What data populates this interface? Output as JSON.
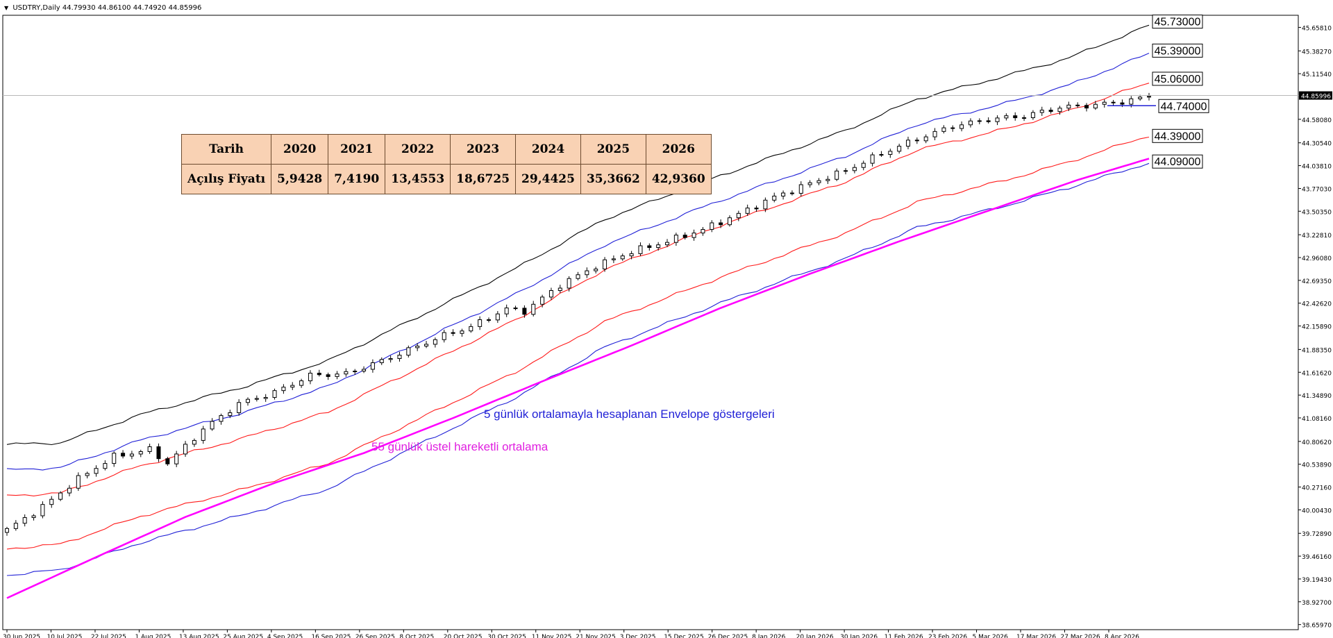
{
  "header": {
    "symbol": "USDTRY,Daily",
    "ohlc": "44.79930 44.86100 44.74920 44.85996"
  },
  "table": {
    "row1": [
      "Tarih",
      "2020",
      "2021",
      "2022",
      "2023",
      "2024",
      "2025",
      "2026"
    ],
    "row2": [
      "Açılış Fiyatı",
      "5,9428",
      "7,4190",
      "13,4553",
      "18,6725",
      "29,4425",
      "35,3662",
      "42,9360"
    ]
  },
  "annotations": {
    "envelope": "5 günlük ortalamayla hesaplanan Envelope göstergeleri",
    "ema": "55 günlük üstel hareketli ortalama"
  },
  "chart_data": {
    "type": "line",
    "ylim": [
      38.6,
      45.8
    ],
    "y_ticks": [
      "45.65810",
      "45.38270",
      "45.11540",
      "44.85996",
      "44.58080",
      "44.30540",
      "44.03810",
      "43.77030",
      "43.50350",
      "43.22810",
      "42.96080",
      "42.69350",
      "42.42620",
      "42.15890",
      "41.88350",
      "41.61620",
      "41.34890",
      "41.08160",
      "40.80620",
      "40.53890",
      "40.27160",
      "40.00430",
      "39.72890",
      "39.46160",
      "39.19430",
      "38.92700",
      "38.65970"
    ],
    "x_ticks": [
      "30 Jun 2025",
      "10 Jul 2025",
      "22 Jul 2025",
      "1 Aug 2025",
      "13 Aug 2025",
      "25 Aug 2025",
      "4 Sep 2025",
      "16 Sep 2025",
      "26 Sep 2025",
      "8 Oct 2025",
      "20 Oct 2025",
      "30 Oct 2025",
      "11 Nov 2025",
      "21 Nov 2025",
      "3 Dec 2025",
      "15 Dec 2025",
      "26 Dec 2025",
      "8 Jan 2026",
      "20 Jan 2026",
      "30 Jan 2026",
      "11 Feb 2026",
      "23 Feb 2026",
      "5 Mar 2026",
      "17 Mar 2026",
      "27 Mar 2026",
      "8 Apr 2026"
    ],
    "current_price": "44.85996",
    "level_labels": [
      "45.73000",
      "45.39000",
      "45.06000",
      "44.74000",
      "44.39000",
      "44.09000"
    ],
    "level_values": [
      45.73,
      45.39,
      45.06,
      44.74,
      44.39,
      44.09
    ],
    "series": [
      {
        "role": "envelope_outer",
        "color": "#000000",
        "anchors": [
          [
            0,
            40.77
          ],
          [
            6,
            40.79
          ],
          [
            15,
            41.12
          ],
          [
            27,
            41.46
          ],
          [
            36,
            41.75
          ],
          [
            46,
            42.26
          ],
          [
            57,
            42.83
          ],
          [
            67,
            43.41
          ],
          [
            80,
            43.92
          ],
          [
            94,
            44.45
          ],
          [
            102,
            44.82
          ],
          [
            112,
            45.09
          ],
          [
            119,
            45.3
          ],
          [
            128,
            45.68
          ]
        ]
      },
      {
        "role": "envelope_outer",
        "color": "#1f1fd6",
        "anchors": [
          [
            0,
            40.47
          ],
          [
            6,
            40.5
          ],
          [
            15,
            40.82
          ],
          [
            27,
            41.16
          ],
          [
            36,
            41.45
          ],
          [
            46,
            41.96
          ],
          [
            57,
            42.53
          ],
          [
            67,
            43.11
          ],
          [
            80,
            43.63
          ],
          [
            94,
            44.15
          ],
          [
            102,
            44.52
          ],
          [
            112,
            44.77
          ],
          [
            119,
            44.98
          ],
          [
            128,
            45.35
          ]
        ]
      },
      {
        "role": "envelope_inner",
        "color": "#ff1a1a",
        "anchors": [
          [
            0,
            40.17
          ],
          [
            6,
            40.2
          ],
          [
            15,
            40.52
          ],
          [
            27,
            40.86
          ],
          [
            36,
            41.15
          ],
          [
            46,
            41.66
          ],
          [
            57,
            42.23
          ],
          [
            67,
            42.82
          ],
          [
            80,
            43.34
          ],
          [
            94,
            43.85
          ],
          [
            102,
            44.22
          ],
          [
            112,
            44.47
          ],
          [
            119,
            44.68
          ],
          [
            128,
            45.01
          ]
        ]
      },
      {
        "role": "envelope_inner",
        "color": "#ff1a1a",
        "anchors": [
          [
            0,
            39.55
          ],
          [
            6,
            39.6
          ],
          [
            15,
            39.93
          ],
          [
            27,
            40.26
          ],
          [
            36,
            40.55
          ],
          [
            46,
            41.06
          ],
          [
            57,
            41.62
          ],
          [
            67,
            42.21
          ],
          [
            80,
            42.73
          ],
          [
            94,
            43.25
          ],
          [
            102,
            43.61
          ],
          [
            112,
            43.87
          ],
          [
            119,
            44.08
          ],
          [
            128,
            44.39
          ]
        ]
      },
      {
        "role": "envelope_lower",
        "color": "#1f1fd6",
        "anchors": [
          [
            0,
            39.24
          ],
          [
            6,
            39.3
          ],
          [
            15,
            39.62
          ],
          [
            27,
            39.96
          ],
          [
            36,
            40.25
          ],
          [
            46,
            40.76
          ],
          [
            57,
            41.32
          ],
          [
            67,
            41.91
          ],
          [
            80,
            42.43
          ],
          [
            94,
            42.95
          ],
          [
            102,
            43.31
          ],
          [
            112,
            43.57
          ],
          [
            119,
            43.78
          ],
          [
            128,
            44.07
          ]
        ]
      },
      {
        "role": "ema55",
        "color": "#ff00ff",
        "anchors": [
          [
            0,
            38.97
          ],
          [
            10,
            39.45
          ],
          [
            20,
            39.92
          ],
          [
            30,
            40.32
          ],
          [
            40,
            40.67
          ],
          [
            50,
            41.08
          ],
          [
            60,
            41.51
          ],
          [
            70,
            41.93
          ],
          [
            80,
            42.37
          ],
          [
            90,
            42.77
          ],
          [
            100,
            43.15
          ],
          [
            110,
            43.51
          ],
          [
            120,
            43.87
          ],
          [
            128,
            44.12
          ]
        ]
      }
    ],
    "close_anchors": [
      [
        0,
        39.77
      ],
      [
        4,
        40.04
      ],
      [
        8,
        40.37
      ],
      [
        12,
        40.63
      ],
      [
        16,
        40.71
      ],
      [
        18,
        40.55
      ],
      [
        22,
        40.95
      ],
      [
        26,
        41.25
      ],
      [
        30,
        41.38
      ],
      [
        34,
        41.58
      ],
      [
        38,
        41.6
      ],
      [
        42,
        41.75
      ],
      [
        46,
        41.92
      ],
      [
        49,
        42.05
      ],
      [
        52,
        42.15
      ],
      [
        56,
        42.36
      ],
      [
        58,
        42.33
      ],
      [
        62,
        42.64
      ],
      [
        66,
        42.86
      ],
      [
        70,
        43.03
      ],
      [
        74,
        43.15
      ],
      [
        78,
        43.29
      ],
      [
        82,
        43.47
      ],
      [
        86,
        43.67
      ],
      [
        90,
        43.83
      ],
      [
        94,
        43.98
      ],
      [
        98,
        44.18
      ],
      [
        102,
        44.35
      ],
      [
        106,
        44.5
      ],
      [
        110,
        44.58
      ],
      [
        114,
        44.62
      ],
      [
        118,
        44.72
      ],
      [
        122,
        44.75
      ],
      [
        126,
        44.8
      ],
      [
        128,
        44.86
      ]
    ]
  }
}
